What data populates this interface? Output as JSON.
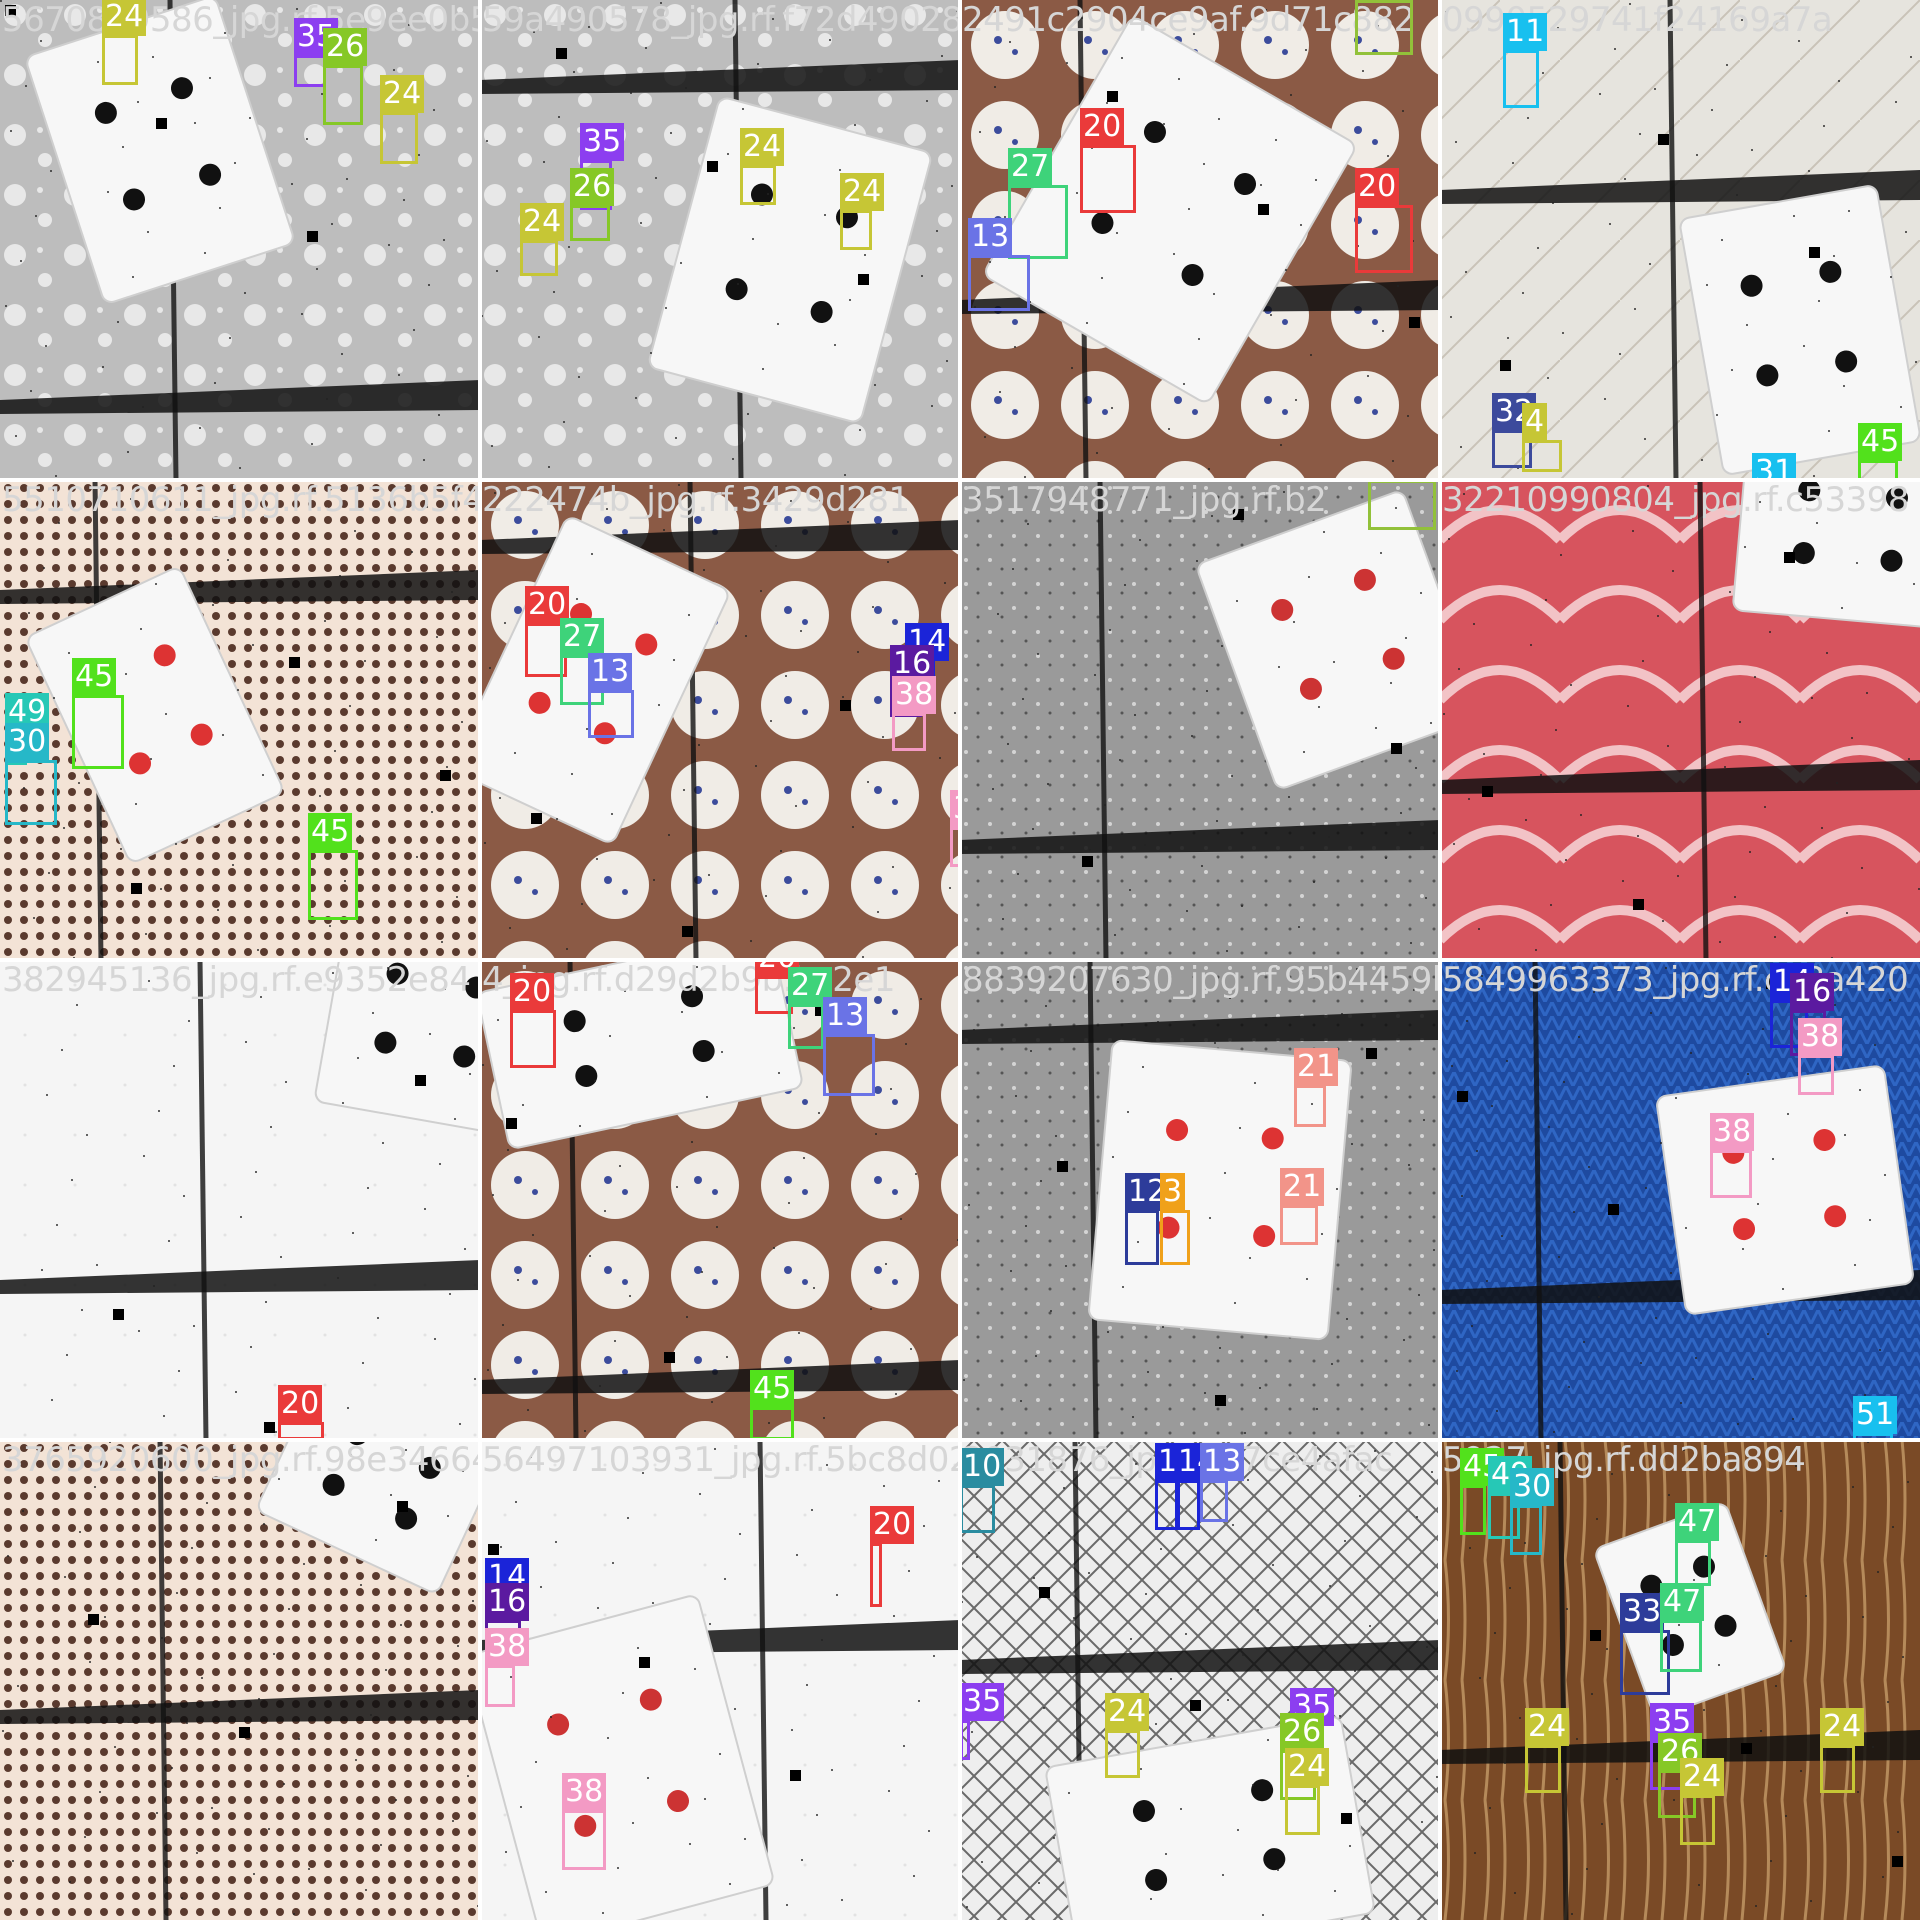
{
  "mosaic": {
    "grid_label": "Training batch mosaic (4x4)",
    "tiles": [
      {
        "caption": "5670839586_jpg.rf.5e9ee0b5887",
        "bg": "bubbles",
        "labels": [
          {
            "cls": "24",
            "color": "#c6c635"
          },
          {
            "cls": "35",
            "color": "#8c3ef0"
          },
          {
            "cls": "26",
            "color": "#86c826"
          },
          {
            "cls": "24",
            "color": "#c6c635"
          }
        ]
      },
      {
        "caption": "59a490578_jpg.rf.f72d49028",
        "bg": "bubbles",
        "labels": [
          {
            "cls": "35",
            "color": "#8c3ef0"
          },
          {
            "cls": "26",
            "color": "#86c826"
          },
          {
            "cls": "24",
            "color": "#c6c635"
          },
          {
            "cls": "24",
            "color": "#c6c635"
          },
          {
            "cls": "24",
            "color": "#c6c635"
          }
        ]
      },
      {
        "caption": "2491c2904ce9af.9d71c882",
        "bg": "cupcake",
        "labels": [
          {
            "cls": "20",
            "color": "#ea3a3a"
          },
          {
            "cls": "27",
            "color": "#3ed37a"
          },
          {
            "cls": "20",
            "color": "#ea3a3a"
          },
          {
            "cls": "13",
            "color": "#6a73e6"
          },
          {
            "cls": "6",
            "color": "#92c13a"
          }
        ]
      },
      {
        "caption": "0990529741f24169a7a",
        "bg": "room",
        "labels": [
          {
            "cls": "11",
            "color": "#18c0ef"
          },
          {
            "cls": "32",
            "color": "#3c4a9c"
          },
          {
            "cls": "4",
            "color": "#c6c635"
          },
          {
            "cls": "45",
            "color": "#52e11c"
          },
          {
            "cls": "31",
            "color": "#18c0ef"
          }
        ]
      },
      {
        "caption": "5510710611_jpg.rf.5136b5f4993",
        "bg": "dots",
        "labels": [
          {
            "cls": "45",
            "color": "#52e11c"
          },
          {
            "cls": "49",
            "color": "#26c8b6"
          },
          {
            "cls": "30",
            "color": "#26b8c8"
          },
          {
            "cls": "45",
            "color": "#52e11c"
          }
        ]
      },
      {
        "caption": "222474b_jpg.rf.3429d281",
        "bg": "cupcake",
        "labels": [
          {
            "cls": "20",
            "color": "#ea3a3a"
          },
          {
            "cls": "27",
            "color": "#3ed37a"
          },
          {
            "cls": "13",
            "color": "#6a73e6"
          },
          {
            "cls": "14",
            "color": "#1b24d8"
          },
          {
            "cls": "16",
            "color": "#5b1aa0"
          },
          {
            "cls": "38",
            "color": "#f39ac4"
          },
          {
            "cls": "38",
            "color": "#f39ac4"
          }
        ]
      },
      {
        "caption": "3517948771_jpg.rf.b2",
        "bg": "stone",
        "labels": [
          {
            "cls": "6",
            "color": "#92c13a"
          }
        ]
      },
      {
        "caption": "32210990804_jpg.rf.c53398",
        "bg": "rose",
        "labels": []
      },
      {
        "caption": "382945136_jpg.rf.e9352e84",
        "bg": "plain",
        "labels": [
          {
            "cls": "20",
            "color": "#ea3a3a"
          }
        ]
      },
      {
        "caption": "4_jpg.rf.d29d2b9b.bc2e1",
        "bg": "cupcake",
        "labels": [
          {
            "cls": "20",
            "color": "#ea3a3a"
          },
          {
            "cls": "20",
            "color": "#ea3a3a"
          },
          {
            "cls": "27",
            "color": "#3ed37a"
          },
          {
            "cls": "13",
            "color": "#6a73e6"
          },
          {
            "cls": "45",
            "color": "#52e11c"
          }
        ]
      },
      {
        "caption": "8839207630_jpg.rf.95b4459bb2",
        "bg": "stone",
        "labels": [
          {
            "cls": "21",
            "color": "#f29489"
          },
          {
            "cls": "21",
            "color": "#f29489"
          },
          {
            "cls": "12",
            "color": "#2d3c9a"
          },
          {
            "cls": "3",
            "color": "#f0a11a"
          }
        ]
      },
      {
        "caption": "5849963373_jpg.rf.c48a420",
        "bg": "knit",
        "labels": [
          {
            "cls": "14",
            "color": "#1b24d8"
          },
          {
            "cls": "16",
            "color": "#5b1aa0"
          },
          {
            "cls": "38",
            "color": "#f39ac4"
          },
          {
            "cls": "38",
            "color": "#f39ac4"
          },
          {
            "cls": "51",
            "color": "#18c0ef"
          }
        ]
      },
      {
        "caption": "3765920600_jpg.rf.98e34664",
        "bg": "dots",
        "labels": []
      },
      {
        "caption": "56497103931_jpg.rf.5bc8d022",
        "bg": "plain",
        "labels": [
          {
            "cls": "14",
            "color": "#1b24d8"
          },
          {
            "cls": "16",
            "color": "#5b1aa0"
          },
          {
            "cls": "38",
            "color": "#f39ac4"
          },
          {
            "cls": "38",
            "color": "#f39ac4"
          },
          {
            "cls": "20",
            "color": "#ea3a3a"
          }
        ]
      },
      {
        "caption": "2031876_jpg.rf.a7ce4afac",
        "bg": "lattice",
        "labels": [
          {
            "cls": "10",
            "color": "#2a8ca0"
          },
          {
            "cls": "11",
            "color": "#1b24d8"
          },
          {
            "cls": "14",
            "color": "#1b24d8"
          },
          {
            "cls": "13",
            "color": "#6a73e6"
          },
          {
            "cls": "35",
            "color": "#8c3ef0"
          },
          {
            "cls": "24",
            "color": "#c6c635"
          },
          {
            "cls": "35",
            "color": "#8c3ef0"
          },
          {
            "cls": "26",
            "color": "#86c826"
          },
          {
            "cls": "24",
            "color": "#c6c635"
          }
        ]
      },
      {
        "caption": "5927_jpg.rf.dd2ba894",
        "bg": "wood",
        "labels": [
          {
            "cls": "45",
            "color": "#52e11c"
          },
          {
            "cls": "49",
            "color": "#26c8b6"
          },
          {
            "cls": "30",
            "color": "#26b8c8"
          },
          {
            "cls": "47",
            "color": "#3ed37a"
          },
          {
            "cls": "33",
            "color": "#2d3c9a"
          },
          {
            "cls": "47",
            "color": "#3ed37a"
          },
          {
            "cls": "24",
            "color": "#c6c635"
          },
          {
            "cls": "35",
            "color": "#8c3ef0"
          },
          {
            "cls": "26",
            "color": "#86c826"
          },
          {
            "cls": "24",
            "color": "#c6c635"
          },
          {
            "cls": "24",
            "color": "#c6c635"
          }
        ]
      }
    ]
  }
}
